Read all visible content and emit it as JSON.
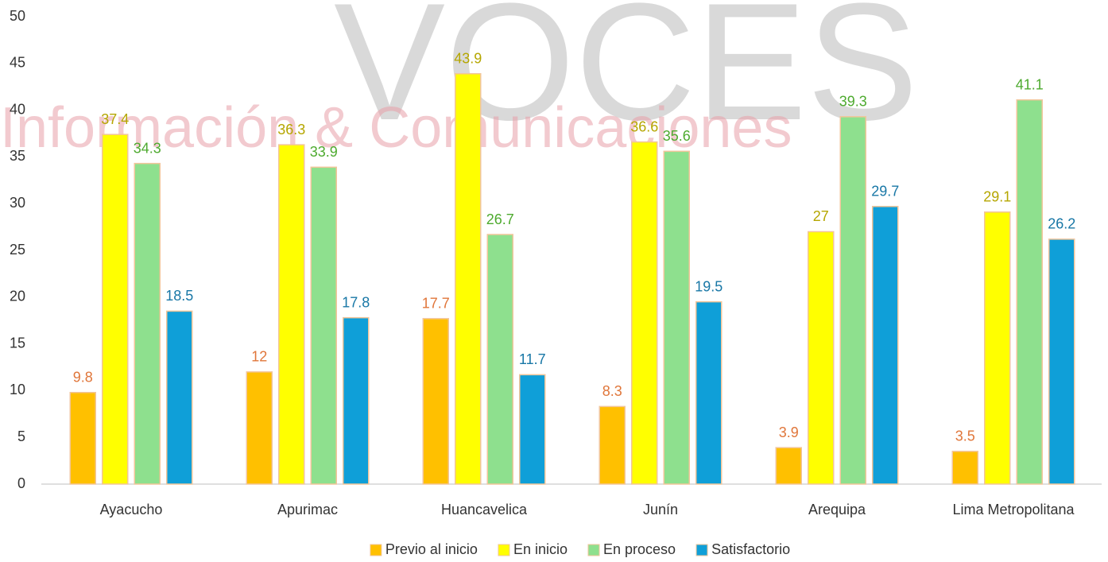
{
  "chart_data": {
    "type": "bar",
    "watermark": [
      "VOCES",
      "Información & Comunicaciones"
    ],
    "categories": [
      "Ayacucho",
      "Apurimac",
      "Huancavelica",
      "Junín",
      "Arequipa",
      "Lima Metropolitana"
    ],
    "series": [
      {
        "name": "Previo al inicio",
        "color": "#FFC000",
        "label_color": "#E0763A",
        "values": [
          9.8,
          12,
          17.7,
          8.3,
          3.9,
          3.5
        ]
      },
      {
        "name": "En inicio",
        "color": "#FFFF00",
        "label_color": "#B5A600",
        "values": [
          37.4,
          36.3,
          43.9,
          36.6,
          27,
          29.1
        ]
      },
      {
        "name": "En proceso",
        "color": "#8EE08E",
        "label_color": "#4DAA2E",
        "values": [
          34.3,
          33.9,
          26.7,
          35.6,
          39.3,
          41.1
        ]
      },
      {
        "name": "Satisfactorio",
        "color": "#0F9FD8",
        "label_color": "#1877A6",
        "values": [
          18.5,
          17.8,
          11.7,
          19.5,
          29.7,
          26.2
        ]
      }
    ],
    "ylim": [
      0,
      50
    ],
    "yticks": [
      0,
      5,
      10,
      15,
      20,
      25,
      30,
      35,
      40,
      45,
      50
    ],
    "grid": false,
    "legend": "bottom"
  }
}
